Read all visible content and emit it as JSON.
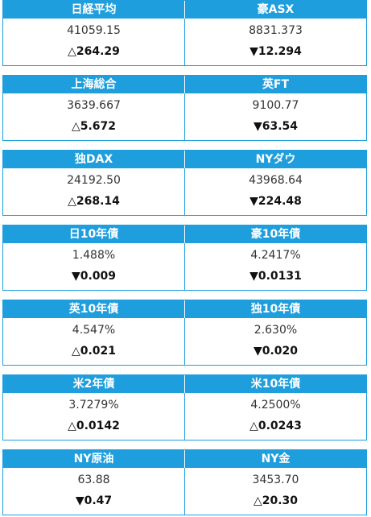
{
  "groups": [
    {
      "left": {
        "name": "日経平均",
        "value": "41059.15",
        "change": "△264.29"
      },
      "right": {
        "name": "豪ASX",
        "value": "8831.373",
        "change": "▼12.294"
      }
    },
    {
      "left": {
        "name": "上海総合",
        "value": "3639.667",
        "change": "△5.672"
      },
      "right": {
        "name": "英FT",
        "value": "9100.77",
        "change": "▼63.54"
      }
    },
    {
      "left": {
        "name": "独DAX",
        "value": "24192.50",
        "change": "△268.14"
      },
      "right": {
        "name": "NYダウ",
        "value": "43968.64",
        "change": "▼224.48"
      }
    },
    {
      "left": {
        "name": "日10年債",
        "value": "1.488%",
        "change": "▼0.009"
      },
      "right": {
        "name": "豪10年債",
        "value": "4.2417%",
        "change": "▼0.0131"
      }
    },
    {
      "left": {
        "name": "英10年債",
        "value": "4.547%",
        "change": "△0.021"
      },
      "right": {
        "name": "独10年債",
        "value": "2.630%",
        "change": "▼0.020"
      }
    },
    {
      "left": {
        "name": "米2年債",
        "value": "3.7279%",
        "change": "△0.0142"
      },
      "right": {
        "name": "米10年債",
        "value": "4.2500%",
        "change": "△0.0243"
      }
    },
    {
      "left": {
        "name": "NY原油",
        "value": "63.88",
        "change": "▼0.47"
      },
      "right": {
        "name": "NY金",
        "value": "3453.70",
        "change": "△20.30"
      }
    }
  ],
  "colors": {
    "header_bg": "#1f9ede",
    "header_text": "#ffffff",
    "border": "#1f9ede"
  }
}
